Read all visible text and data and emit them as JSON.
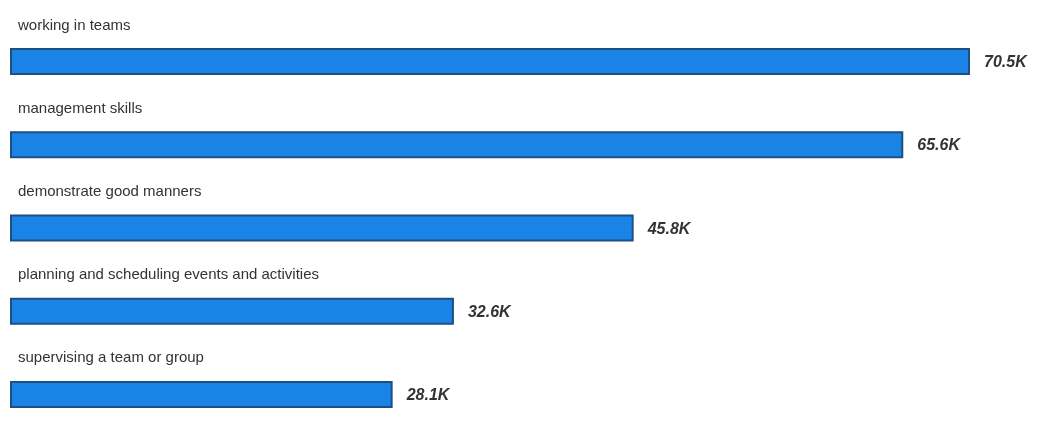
{
  "chart_data": {
    "type": "bar",
    "orientation": "horizontal",
    "categories": [
      "working in teams",
      "management skills",
      "demonstrate good manners",
      "planning and scheduling events and activities",
      "supervising a team or group"
    ],
    "values": [
      70.5,
      65.6,
      45.8,
      32.6,
      28.1
    ],
    "value_labels": [
      "70.5K",
      "65.6K",
      "45.8K",
      "32.6K",
      "28.1K"
    ],
    "color": "#1a84e6",
    "tick_labels": "y"
  }
}
